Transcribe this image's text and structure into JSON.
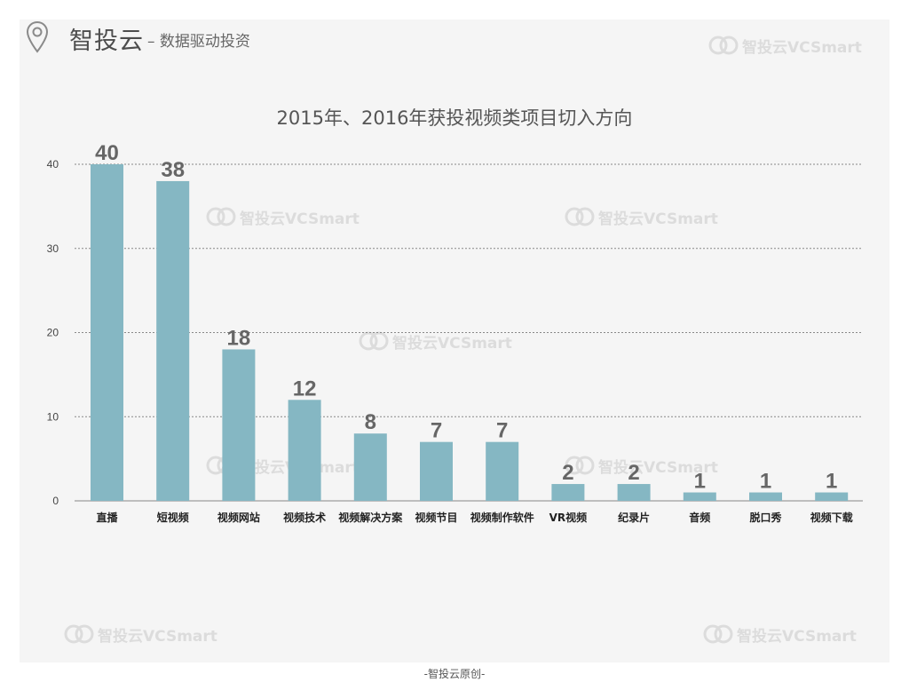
{
  "header": {
    "brand_name": "智投云",
    "tagline": "– 数据驱动投资"
  },
  "footer": {
    "text": "-智投云原创-"
  },
  "watermark": {
    "text": "智投云VCSmart"
  },
  "colors": {
    "bar": "#85b7c3",
    "panel": "#f5f5f5",
    "grid": "#888888",
    "label": "#666666"
  },
  "chart_data": {
    "type": "bar",
    "title": "2015年、2016年获投视频类项目切入方向",
    "categories": [
      "直播",
      "短视频",
      "视频网站",
      "视频技术",
      "视频解决方案",
      "视频节目",
      "视频制作软件",
      "VR视频",
      "纪录片",
      "音频",
      "脱口秀",
      "视频下载"
    ],
    "values": [
      40,
      38,
      18,
      12,
      8,
      7,
      7,
      2,
      2,
      1,
      1,
      1
    ],
    "yticks": [
      0,
      10,
      20,
      30,
      40
    ],
    "ylim": [
      0,
      40
    ],
    "grid": true,
    "xlabel": "",
    "ylabel": ""
  }
}
